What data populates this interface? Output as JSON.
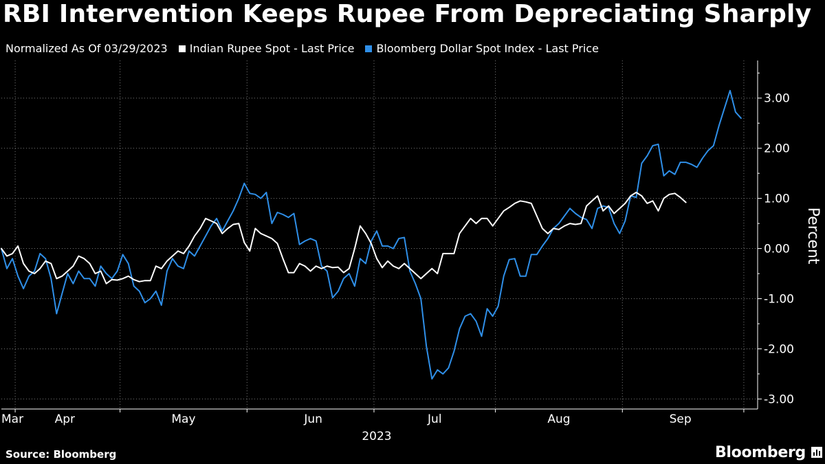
{
  "title": "RBI Intervention Keeps Rupee From Depreciating Sharply",
  "subtitle": "Normalized As Of 03/29/2023",
  "source": "Source: Bloomberg",
  "brand": "Bloomberg",
  "chart_data": {
    "type": "line",
    "title": "RBI Intervention Keeps Rupee From Depreciating Sharply",
    "subtitle": "Normalized As Of 03/29/2023",
    "xlabel": "2023",
    "ylabel": "Percent",
    "ylim": [
      -3.2,
      3.75
    ],
    "yticks": [
      3,
      2,
      1,
      0,
      -1,
      -2,
      -3
    ],
    "ytick_labels": [
      "3.00",
      "2.00",
      "1.00",
      "0.00",
      "-1.00",
      "-2.00",
      "-3.00"
    ],
    "x_range": [
      0,
      137
    ],
    "month_labels": [
      {
        "label": "Mar",
        "pos": 0.5
      },
      {
        "label": "Apr",
        "pos": 11.5
      },
      {
        "label": "May",
        "pos": 33
      },
      {
        "label": "Jun",
        "pos": 56.5
      },
      {
        "label": "Jul",
        "pos": 78.5
      },
      {
        "label": "Aug",
        "pos": 101
      },
      {
        "label": "Sep",
        "pos": 123
      }
    ],
    "month_dividers": [
      2.5,
      21.5,
      44.5,
      67.5,
      89.5,
      112.5,
      134.5
    ],
    "year_label": {
      "label": "2023",
      "pos": 68
    },
    "grid": true,
    "legend_position": "top-left",
    "series": [
      {
        "name": "Indian Rupee Spot - Last Price",
        "color": "#ffffff",
        "values": [
          0.0,
          -0.15,
          -0.1,
          0.05,
          -0.3,
          -0.45,
          -0.5,
          -0.4,
          -0.25,
          -0.3,
          -0.6,
          -0.55,
          -0.45,
          -0.35,
          -0.15,
          -0.2,
          -0.3,
          -0.5,
          -0.45,
          -0.7,
          -0.62,
          -0.63,
          -0.6,
          -0.55,
          -0.62,
          -0.66,
          -0.64,
          -0.64,
          -0.35,
          -0.4,
          -0.25,
          -0.15,
          -0.05,
          -0.1,
          0.05,
          0.25,
          0.4,
          0.6,
          0.55,
          0.5,
          0.3,
          0.4,
          0.48,
          0.5,
          0.12,
          -0.05,
          0.4,
          0.3,
          0.25,
          0.2,
          0.1,
          -0.2,
          -0.48,
          -0.48,
          -0.3,
          -0.35,
          -0.45,
          -0.35,
          -0.4,
          -0.35,
          -0.38,
          -0.37,
          -0.48,
          -0.4,
          0.0,
          0.45,
          0.3,
          0.1,
          -0.2,
          -0.38,
          -0.25,
          -0.35,
          -0.4,
          -0.3,
          -0.4,
          -0.5,
          -0.6,
          -0.5,
          -0.4,
          -0.5,
          -0.1,
          -0.1,
          -0.1,
          0.3,
          0.45,
          0.6,
          0.5,
          0.6,
          0.6,
          0.45,
          0.6,
          0.75,
          0.82,
          0.9,
          0.95,
          0.93,
          0.9,
          0.65,
          0.4,
          0.3,
          0.4,
          0.38,
          0.45,
          0.5,
          0.48,
          0.5,
          0.85,
          0.95,
          1.05,
          0.75,
          0.85,
          0.7,
          0.8,
          0.9,
          1.05,
          1.12,
          1.05,
          0.9,
          0.95,
          0.75,
          1.0,
          1.08,
          1.1,
          1.02,
          0.92
        ]
      },
      {
        "name": "Bloomberg Dollar Spot Index - Last Price",
        "color": "#2f8fe8",
        "values": [
          0.0,
          -0.4,
          -0.2,
          -0.55,
          -0.8,
          -0.55,
          -0.45,
          -0.1,
          -0.2,
          -0.6,
          -1.3,
          -0.9,
          -0.5,
          -0.7,
          -0.45,
          -0.6,
          -0.6,
          -0.75,
          -0.35,
          -0.5,
          -0.6,
          -0.45,
          -0.12,
          -0.3,
          -0.75,
          -0.85,
          -1.08,
          -1.0,
          -0.85,
          -1.13,
          -0.45,
          -0.2,
          -0.35,
          -0.4,
          -0.05,
          -0.15,
          0.05,
          0.25,
          0.45,
          0.6,
          0.35,
          0.55,
          0.75,
          1.0,
          1.3,
          1.1,
          1.08,
          1.0,
          1.12,
          0.5,
          0.72,
          0.68,
          0.62,
          0.7,
          0.08,
          0.15,
          0.2,
          0.15,
          -0.35,
          -0.45,
          -0.98,
          -0.85,
          -0.6,
          -0.5,
          -0.75,
          -0.2,
          -0.3,
          0.15,
          0.35,
          0.05,
          0.05,
          0.0,
          0.2,
          0.22,
          -0.45,
          -0.7,
          -1.0,
          -1.95,
          -2.6,
          -2.42,
          -2.5,
          -2.38,
          -2.05,
          -1.6,
          -1.35,
          -1.3,
          -1.45,
          -1.75,
          -1.2,
          -1.35,
          -1.15,
          -0.55,
          -0.22,
          -0.2,
          -0.55,
          -0.55,
          -0.12,
          -0.12,
          0.05,
          0.2,
          0.4,
          0.5,
          0.65,
          0.8,
          0.7,
          0.62,
          0.58,
          0.4,
          0.8,
          0.85,
          0.82,
          0.5,
          0.3,
          0.55,
          1.05,
          1.02,
          1.7,
          1.85,
          2.05,
          2.08,
          1.45,
          1.55,
          1.48,
          1.72,
          1.72,
          1.68,
          1.62,
          1.8,
          1.95,
          2.05,
          2.45,
          2.8,
          3.15,
          2.72,
          2.6
        ]
      }
    ]
  }
}
